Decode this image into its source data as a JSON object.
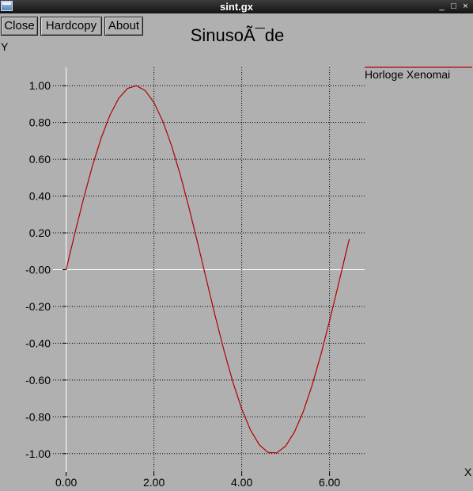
{
  "window": {
    "title": "sint.gx",
    "controls": {
      "minimize": "_",
      "maximize": "□",
      "close": "×"
    }
  },
  "toolbar": {
    "close_label": "Close",
    "hardcopy_label": "Hardcopy",
    "about_label": "About"
  },
  "colors": {
    "background": "#b0b0b0",
    "series": "#b30000",
    "zero_line": "#ffffff",
    "grid": "#000000"
  },
  "chart_data": {
    "type": "line",
    "title": "SinusoÃ¯de",
    "xlabel": "X",
    "ylabel": "Y",
    "xlim": [
      -0.3,
      6.8
    ],
    "ylim": [
      -1.1,
      1.1
    ],
    "x_ticks": [
      0,
      2,
      4,
      6
    ],
    "x_tick_labels": [
      "0.00",
      "2.00",
      "4.00",
      "6.00"
    ],
    "y_ticks": [
      1.0,
      0.8,
      0.6,
      0.4,
      0.2,
      0.0,
      -0.2,
      -0.4,
      -0.6,
      -0.8,
      -1.0
    ],
    "y_tick_labels": [
      "1.00",
      "0.80",
      "0.60",
      "0.40",
      "0.20",
      "-0.00",
      "-0.20",
      "-0.40",
      "-0.60",
      "-0.80",
      "-1.00"
    ],
    "grid": true,
    "legend_position": "top-right",
    "series": [
      {
        "name": "Horloge Xenomai",
        "color": "#b30000",
        "x": [
          0.0,
          0.2,
          0.4,
          0.6,
          0.8,
          1.0,
          1.2,
          1.4,
          1.6,
          1.8,
          2.0,
          2.2,
          2.4,
          2.6,
          2.8,
          3.0,
          3.2,
          3.4,
          3.6,
          3.8,
          4.0,
          4.2,
          4.4,
          4.6,
          4.8,
          5.0,
          5.2,
          5.4,
          5.6,
          5.8,
          6.0,
          6.2,
          6.4,
          6.45
        ],
        "y": [
          0.0,
          0.199,
          0.389,
          0.565,
          0.717,
          0.841,
          0.932,
          0.985,
          1.0,
          0.974,
          0.909,
          0.808,
          0.675,
          0.516,
          0.335,
          0.141,
          -0.058,
          -0.256,
          -0.443,
          -0.612,
          -0.757,
          -0.872,
          -0.952,
          -0.994,
          -0.996,
          -0.959,
          -0.883,
          -0.773,
          -0.631,
          -0.465,
          -0.279,
          -0.083,
          0.117,
          0.166
        ]
      }
    ]
  }
}
